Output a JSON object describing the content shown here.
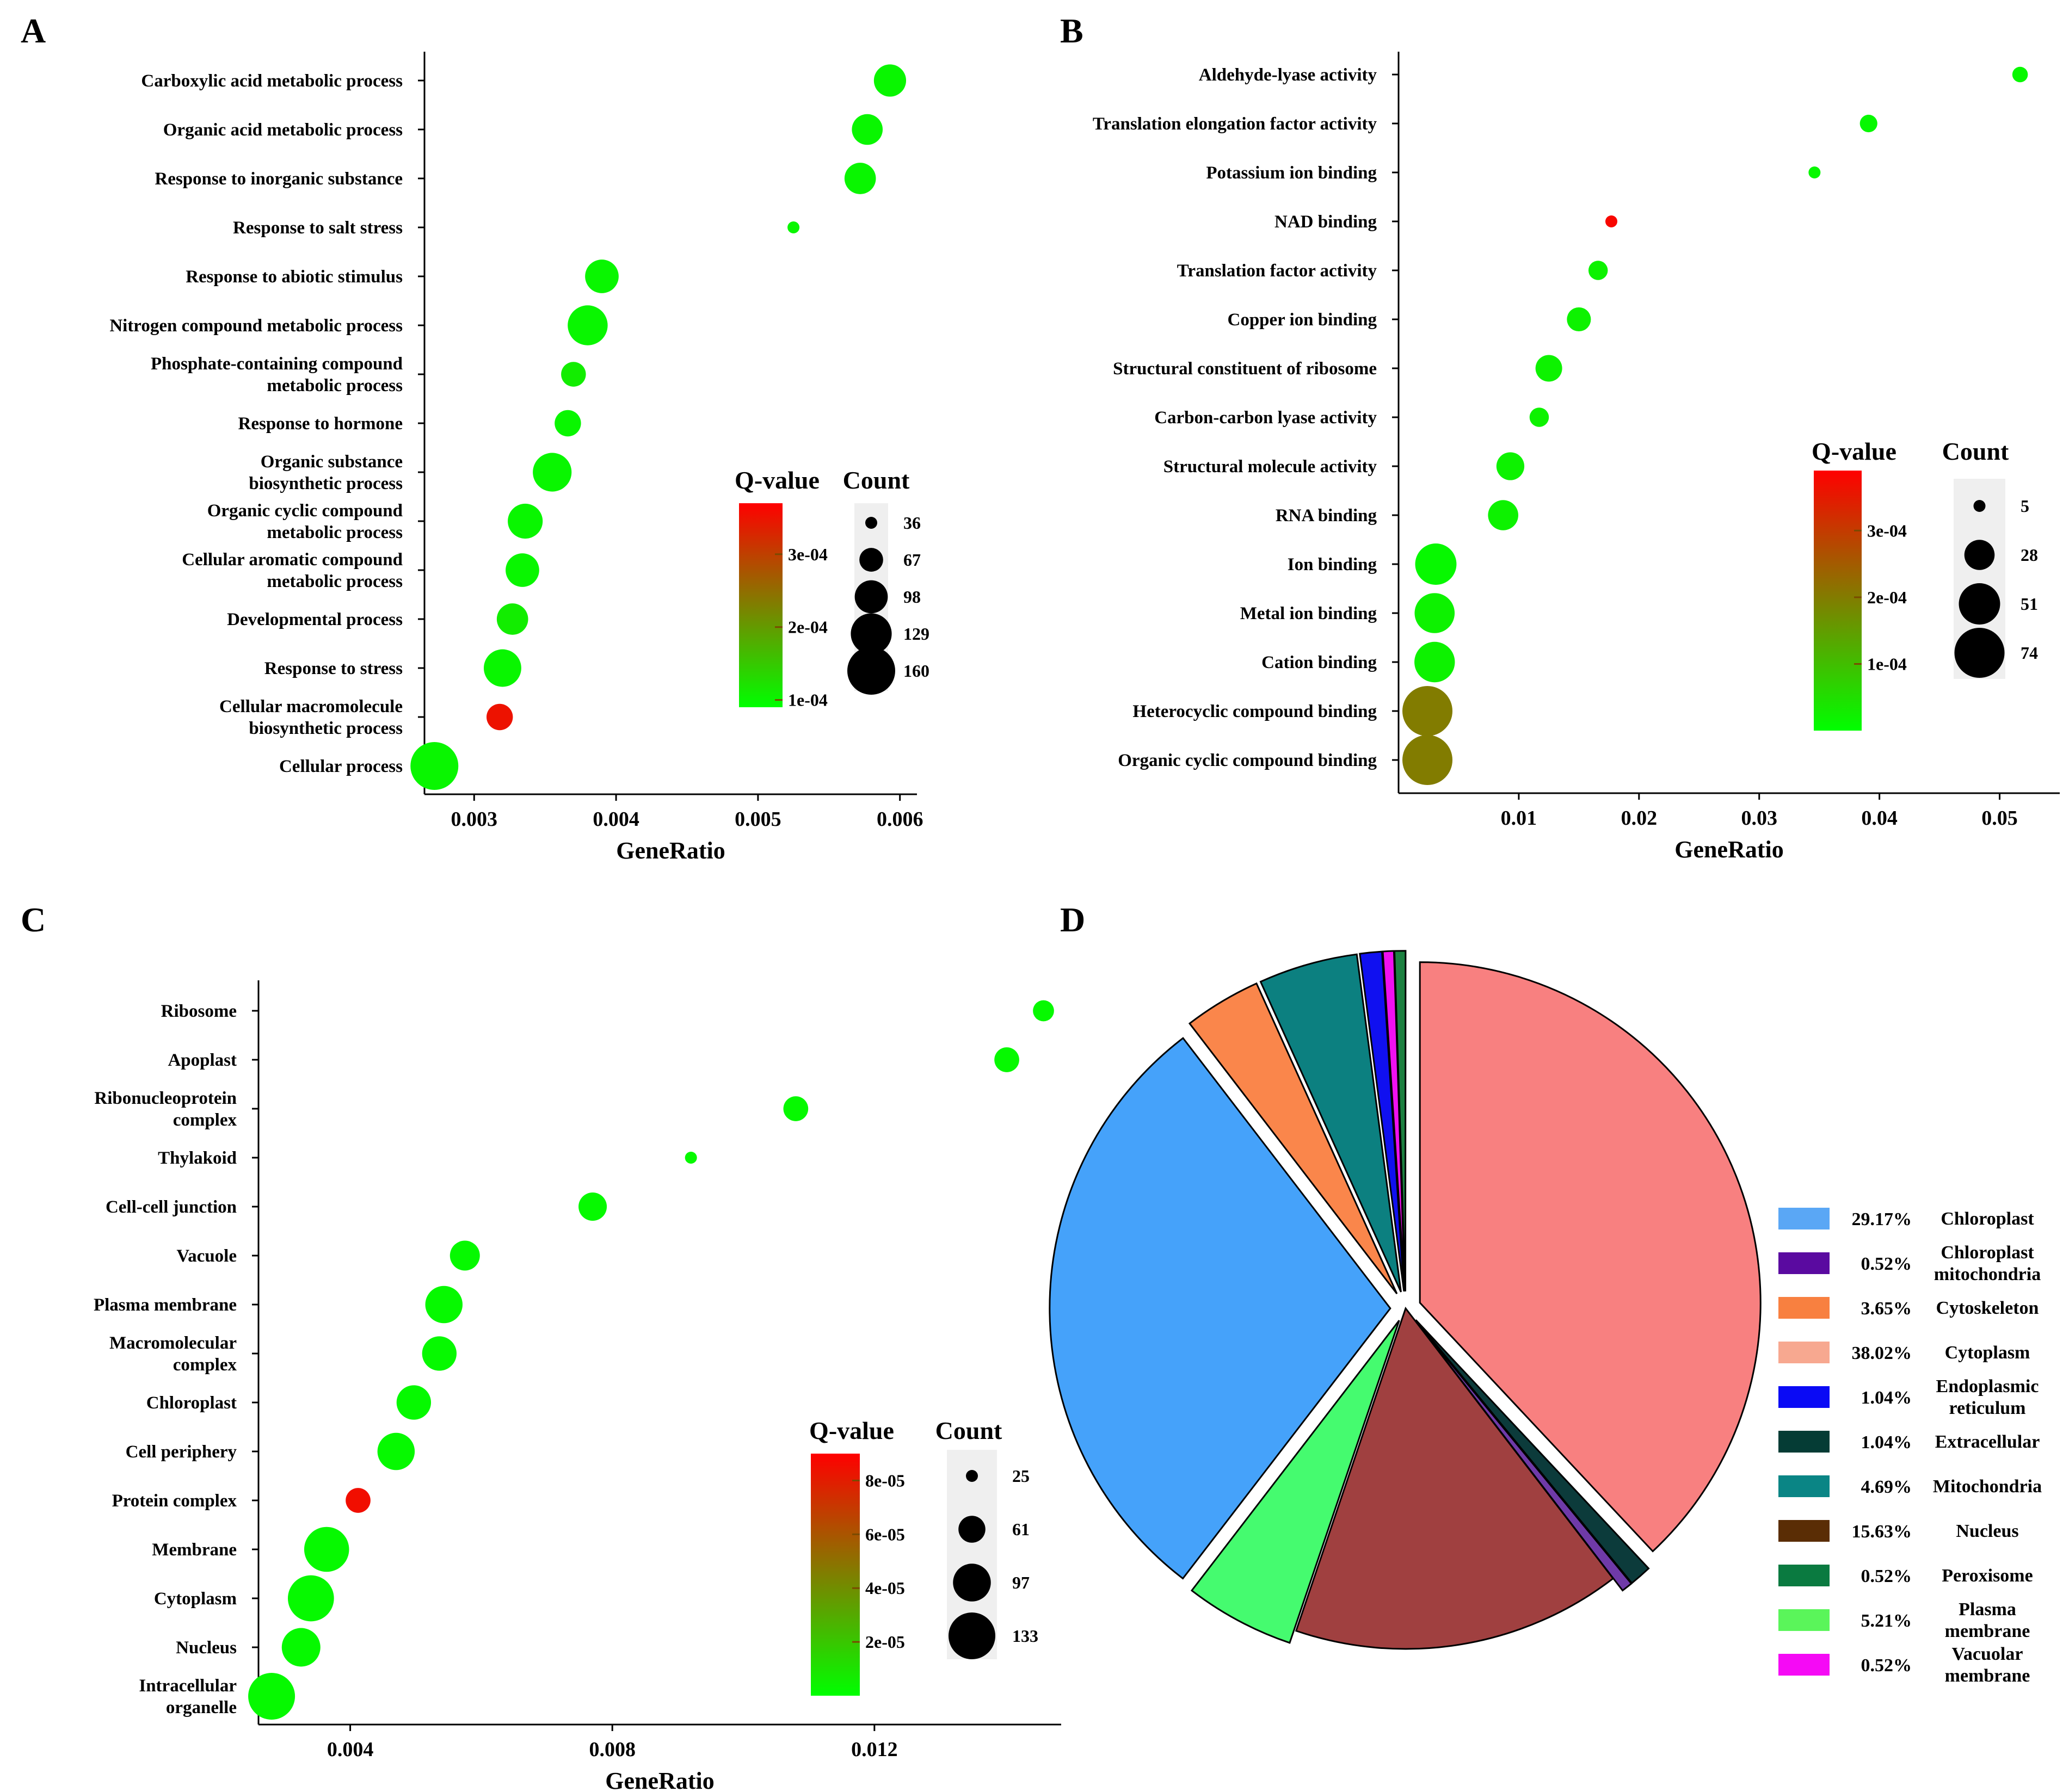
{
  "panel_labels": [
    "A",
    "B",
    "C",
    "D"
  ],
  "chart_data": [
    {
      "panel": "A",
      "type": "scatter",
      "xlabel": "GeneRatio",
      "ylabel": "",
      "xlim": [
        0.00265,
        0.00612
      ],
      "xticks": [
        0.003,
        0.004,
        0.005,
        0.006
      ],
      "xtick_labels": [
        "0.003",
        "0.004",
        "0.005",
        "0.006"
      ],
      "categories": [
        "Carboxylic acid metabolic process",
        "Organic acid metabolic process",
        "Response to inorganic substance",
        "Response to salt stress",
        "Response to abiotic stimulus",
        "Nitrogen compound metabolic process",
        "Phosphate-containing compound\nmetabolic process",
        "Response to hormone",
        "Organic substance\nbiosynthetic process",
        "Organic cyclic compound\nmetabolic process",
        "Cellular aromatic compound\nmetabolic process",
        "Developmental process",
        "Response to stress",
        "Cellular macromolecule\nbiosynthetic process",
        "Cellular process"
      ],
      "x": [
        0.00593,
        0.00577,
        0.00572,
        0.00525,
        0.0039,
        0.0038,
        0.0037,
        0.00366,
        0.00355,
        0.00336,
        0.00334,
        0.00327,
        0.0032,
        0.00318,
        0.00272
      ],
      "count": [
        95,
        90,
        92,
        36,
        100,
        125,
        70,
        75,
        120,
        105,
        100,
        92,
        115,
        75,
        160
      ],
      "qvalue": [
        0.0001,
        0.0001,
        0.0001,
        0.0001,
        0.0001,
        0.0001,
        0.00011,
        0.0001,
        0.0001,
        0.0001,
        0.0001,
        0.00011,
        0.0001,
        0.00035,
        0.0001
      ],
      "colorbar": {
        "title": "Q-value",
        "min": 9e-05,
        "max": 0.00037,
        "ticks": [
          0.0001,
          0.0002,
          0.0003
        ],
        "tick_labels": [
          "1e-04",
          "2e-04",
          "3e-04"
        ]
      },
      "sizelegend": {
        "title": "Count",
        "values": [
          36,
          67,
          98,
          129,
          160
        ],
        "labels": [
          "36",
          "67",
          "98",
          "129",
          "160"
        ]
      }
    },
    {
      "panel": "B",
      "type": "scatter",
      "xlabel": "GeneRatio",
      "ylabel": "",
      "xlim": [
        0.0,
        0.055
      ],
      "xticks": [
        0.01,
        0.02,
        0.03,
        0.04,
        0.05
      ],
      "xtick_labels": [
        "0.01",
        "0.02",
        "0.03",
        "0.04",
        "0.05"
      ],
      "categories": [
        "Aldehyde-lyase activity",
        "Translation elongation factor activity",
        "Potassium ion binding",
        "NAD binding",
        "Translation factor activity",
        "Copper ion binding",
        "Structural constituent of ribosome",
        "Carbon-carbon lyase activity",
        "Structural molecule activity",
        "RNA binding",
        "Ion binding",
        "Metal ion binding",
        "Cation binding",
        "Heterocyclic compound binding",
        "Organic cyclic compound binding"
      ],
      "x": [
        0.0517,
        0.0391,
        0.0346,
        0.0177,
        0.0166,
        0.015,
        0.0125,
        0.0117,
        0.0093,
        0.0087,
        0.0031,
        0.003,
        0.003,
        0.0024,
        0.0024
      ],
      "count": [
        8,
        10,
        5,
        5,
        12,
        18,
        22,
        12,
        24,
        28,
        51,
        48,
        49,
        74,
        74
      ],
      "qvalue": [
        1e-05,
        1e-05,
        1e-05,
        0.00038,
        2e-05,
        2e-05,
        2e-05,
        2e-05,
        2e-05,
        2e-05,
        1e-05,
        2e-05,
        2e-05,
        0.0002,
        0.0002
      ],
      "colorbar": {
        "title": "Q-value",
        "min": 0.0,
        "max": 0.00039,
        "ticks": [
          0.0001,
          0.0002,
          0.0003
        ],
        "tick_labels": [
          "1e-04",
          "2e-04",
          "3e-04"
        ]
      },
      "sizelegend": {
        "title": "Count",
        "values": [
          5,
          28,
          51,
          74
        ],
        "labels": [
          "5",
          "28",
          "51",
          "74"
        ]
      }
    },
    {
      "panel": "C",
      "type": "scatter",
      "xlabel": "GeneRatio",
      "ylabel": "",
      "xlim": [
        0.0026,
        0.01485
      ],
      "xticks": [
        0.004,
        0.008,
        0.012
      ],
      "xtick_labels": [
        "0.004",
        "0.008",
        "0.012"
      ],
      "categories": [
        "Ribosome",
        "Apoplast",
        "Ribonucleoprotein\ncomplex",
        "Thylakoid",
        "Cell-cell junction",
        "Vacuole",
        "Plasma membrane",
        "Macromolecular\ncomplex",
        "Chloroplast",
        "Cell periphery",
        "Protein complex",
        "Membrane",
        "Cytoplasm",
        "Nucleus",
        "Intracellular\norganelle"
      ],
      "x": [
        0.01458,
        0.01402,
        0.0108,
        0.0092,
        0.0077,
        0.00575,
        0.00543,
        0.00536,
        0.00497,
        0.0047,
        0.00412,
        0.00364,
        0.0034,
        0.00325,
        0.0028
      ],
      "count": [
        45,
        55,
        55,
        25,
        65,
        70,
        95,
        85,
        85,
        95,
        55,
        125,
        130,
        100,
        133
      ],
      "qvalue": [
        2e-06,
        2e-06,
        2e-06,
        2e-06,
        2e-06,
        2e-06,
        2e-06,
        2e-06,
        2e-06,
        2e-06,
        8.5e-05,
        2e-06,
        2e-06,
        2e-06,
        2e-06
      ],
      "colorbar": {
        "title": "Q-value",
        "min": 0.0,
        "max": 9e-05,
        "ticks": [
          2e-05,
          4e-05,
          6e-05,
          8e-05
        ],
        "tick_labels": [
          "2e-05",
          "4e-05",
          "6e-05",
          "8e-05"
        ]
      },
      "sizelegend": {
        "title": "Count",
        "values": [
          25,
          61,
          97,
          133
        ],
        "labels": [
          "25",
          "61",
          "97",
          "133"
        ]
      }
    },
    {
      "panel": "D",
      "type": "pie",
      "slices": [
        {
          "label": "Cytoplasm",
          "legend": "Cytoplasm",
          "percent": 38.02,
          "value_label": "38.02%",
          "color": "#f88080",
          "explode": 0.045
        },
        {
          "label": "Extracellular",
          "legend": "Extracellular",
          "percent": 1.04,
          "value_label": "1.04%",
          "color": "#0c3b3b",
          "explode": 0.045
        },
        {
          "label": "Chloroplast mitochondria",
          "legend": "Chloroplast\nmitochondria",
          "percent": 0.52,
          "value_label": "0.52%",
          "color": "#6f3aa8",
          "explode": 0.045
        },
        {
          "label": "Nucleus",
          "legend": "Nucleus",
          "percent": 15.63,
          "value_label": "15.63%",
          "color": "#a04040",
          "explode": 0.0
        },
        {
          "label": "Plasma membrane",
          "legend": "Plasma\nmembrane",
          "percent": 5.21,
          "value_label": "5.21%",
          "color": "#45fb6f",
          "explode": 0.04
        },
        {
          "label": "Chloroplast",
          "legend": "Chloroplast",
          "percent": 29.17,
          "value_label": "29.17%",
          "color": "#45a2fa",
          "explode": 0.045
        },
        {
          "label": "Cytoskeleton",
          "legend": "Cytoskeleton",
          "percent": 3.65,
          "value_label": "3.65%",
          "color": "#fa864b",
          "explode": 0.05
        },
        {
          "label": "Mitochondria",
          "legend": "Mitochondria",
          "percent": 4.69,
          "value_label": "4.69%",
          "color": "#0c8080",
          "explode": 0.05
        },
        {
          "label": "Endoplasmic reticulum",
          "legend": "Endoplasmic\nreticulum",
          "percent": 1.04,
          "value_label": "1.04%",
          "color": "#1010f0",
          "explode": 0.05
        },
        {
          "label": "Vacuolar membrane",
          "legend": "Vacuolar\nmembrane",
          "percent": 0.52,
          "value_label": "0.52%",
          "color": "#f010f0",
          "explode": 0.05
        },
        {
          "label": "Peroxisome",
          "legend": "Peroxisome",
          "percent": 0.52,
          "value_label": "0.52%",
          "color": "#1c8040",
          "explode": 0.05
        }
      ],
      "legend_order": [
        "Chloroplast",
        "Chloroplast mitochondria",
        "Cytoskeleton",
        "Cytoplasm",
        "Endoplasmic reticulum",
        "Extracellular",
        "Mitochondria",
        "Nucleus",
        "Peroxisome",
        "Plasma membrane",
        "Vacuolar membrane"
      ],
      "legend_swatch_colors": {
        "Chloroplast": "#5aa7f5",
        "Chloroplast mitochondria": "#5a0aa0",
        "Cytoskeleton": "#f88040",
        "Cytoplasm": "#f7a890",
        "Endoplasmic reticulum": "#0a0af5",
        "Extracellular": "#053c35",
        "Mitochondria": "#0a8585",
        "Nucleus": "#5a2d05",
        "Peroxisome": "#0a7a40",
        "Plasma membrane": "#5af55a",
        "Vacuolar membrane": "#f50af5"
      },
      "legend_placement": "right"
    }
  ]
}
